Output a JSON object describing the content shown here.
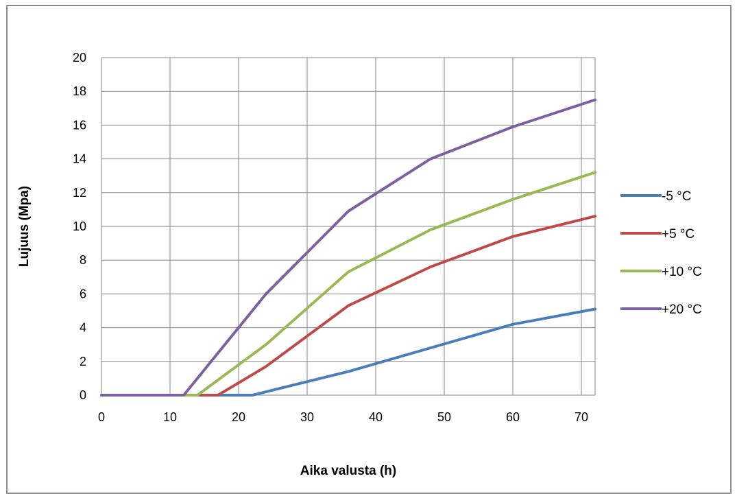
{
  "chart_data": {
    "type": "line",
    "title": "",
    "xlabel": "Aika valusta (h)",
    "ylabel": "Lujuus (Mpa)",
    "xlim": [
      0,
      72
    ],
    "ylim": [
      0,
      20
    ],
    "xticks": [
      0,
      10,
      20,
      30,
      40,
      50,
      60,
      70
    ],
    "yticks": [
      0,
      2,
      4,
      6,
      8,
      10,
      12,
      14,
      16,
      18,
      20
    ],
    "grid": true,
    "legend_position": "right",
    "series": [
      {
        "name": "-5 °C",
        "color": "#4a7ebb",
        "points": [
          [
            0,
            0
          ],
          [
            22,
            0
          ],
          [
            36,
            1.4
          ],
          [
            48,
            2.8
          ],
          [
            60,
            4.2
          ],
          [
            72,
            5.1
          ]
        ]
      },
      {
        "name": "+5  °C",
        "color": "#be4b48",
        "points": [
          [
            0,
            0
          ],
          [
            17,
            0
          ],
          [
            24,
            1.7
          ],
          [
            36,
            5.3
          ],
          [
            48,
            7.6
          ],
          [
            60,
            9.4
          ],
          [
            72,
            10.6
          ]
        ]
      },
      {
        "name": "+10  °C",
        "color": "#98b954",
        "points": [
          [
            0,
            0
          ],
          [
            14,
            0
          ],
          [
            24,
            3.0
          ],
          [
            36,
            7.3
          ],
          [
            48,
            9.8
          ],
          [
            60,
            11.6
          ],
          [
            72,
            13.2
          ]
        ]
      },
      {
        "name": "+20  °C",
        "color": "#7d60a0",
        "points": [
          [
            0,
            0
          ],
          [
            12,
            0
          ],
          [
            24,
            6.0
          ],
          [
            36,
            10.9
          ],
          [
            48,
            14.0
          ],
          [
            60,
            15.9
          ],
          [
            72,
            17.5
          ]
        ]
      }
    ]
  }
}
